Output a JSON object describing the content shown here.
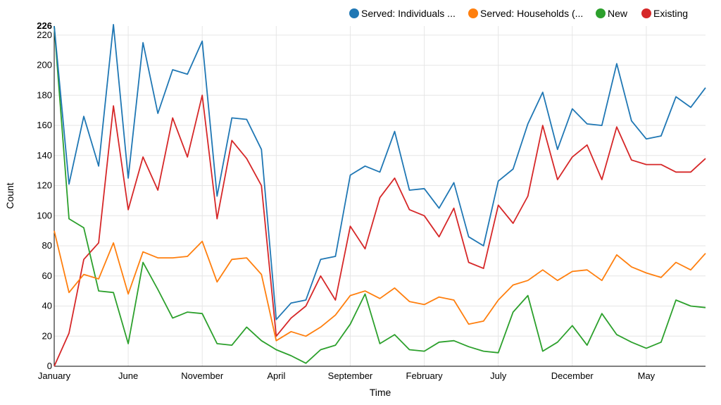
{
  "chart_data": {
    "type": "line",
    "xlabel": "Time",
    "ylabel": "Count",
    "ylim": [
      0,
      226
    ],
    "y_max_label": "226",
    "yticks": [
      0,
      20,
      40,
      60,
      80,
      100,
      120,
      140,
      160,
      180,
      200,
      220
    ],
    "x_tick_labels": [
      {
        "i": 0,
        "label": "January"
      },
      {
        "i": 5,
        "label": "June"
      },
      {
        "i": 10,
        "label": "November"
      },
      {
        "i": 15,
        "label": "April"
      },
      {
        "i": 20,
        "label": "September"
      },
      {
        "i": 25,
        "label": "February"
      },
      {
        "i": 30,
        "label": "July"
      },
      {
        "i": 35,
        "label": "December"
      },
      {
        "i": 40,
        "label": "May"
      }
    ],
    "grid": true,
    "legend_position": "top-right",
    "series": [
      {
        "name": "Served: Individuals ...",
        "color": "#1f77b4",
        "values": [
          226,
          121,
          166,
          133,
          227,
          125,
          215,
          168,
          197,
          194,
          216,
          113,
          165,
          164,
          144,
          31,
          42,
          44,
          71,
          73,
          127,
          133,
          129,
          156,
          117,
          118,
          105,
          122,
          86,
          80,
          123,
          131,
          161,
          182,
          144,
          171,
          161,
          160,
          201,
          163,
          151,
          153,
          179,
          172,
          185
        ]
      },
      {
        "name": "Served: Households (...",
        "color": "#ff7f0e",
        "values": [
          90,
          49,
          61,
          58,
          82,
          48,
          76,
          72,
          72,
          73,
          83,
          56,
          71,
          72,
          61,
          17,
          23,
          20,
          26,
          34,
          47,
          50,
          45,
          52,
          43,
          41,
          46,
          44,
          28,
          30,
          44,
          54,
          57,
          64,
          57,
          63,
          64,
          57,
          74,
          66,
          62,
          59,
          69,
          64,
          75
        ]
      },
      {
        "name": "New",
        "color": "#2ca02c",
        "values": [
          226,
          98,
          92,
          50,
          49,
          15,
          69,
          51,
          32,
          36,
          35,
          15,
          14,
          26,
          17,
          11,
          7,
          2,
          11,
          14,
          28,
          48,
          15,
          21,
          11,
          10,
          16,
          17,
          13,
          10,
          9,
          36,
          47,
          10,
          16,
          27,
          14,
          35,
          21,
          16,
          12,
          16,
          44,
          40,
          39
        ]
      },
      {
        "name": "Existing",
        "color": "#d62728",
        "values": [
          0,
          22,
          71,
          82,
          173,
          104,
          139,
          117,
          165,
          139,
          180,
          98,
          150,
          138,
          120,
          20,
          32,
          40,
          60,
          44,
          93,
          78,
          112,
          125,
          104,
          100,
          86,
          105,
          69,
          65,
          107,
          95,
          113,
          160,
          124,
          139,
          147,
          124,
          159,
          137,
          134,
          134,
          129,
          129,
          138
        ]
      }
    ]
  }
}
